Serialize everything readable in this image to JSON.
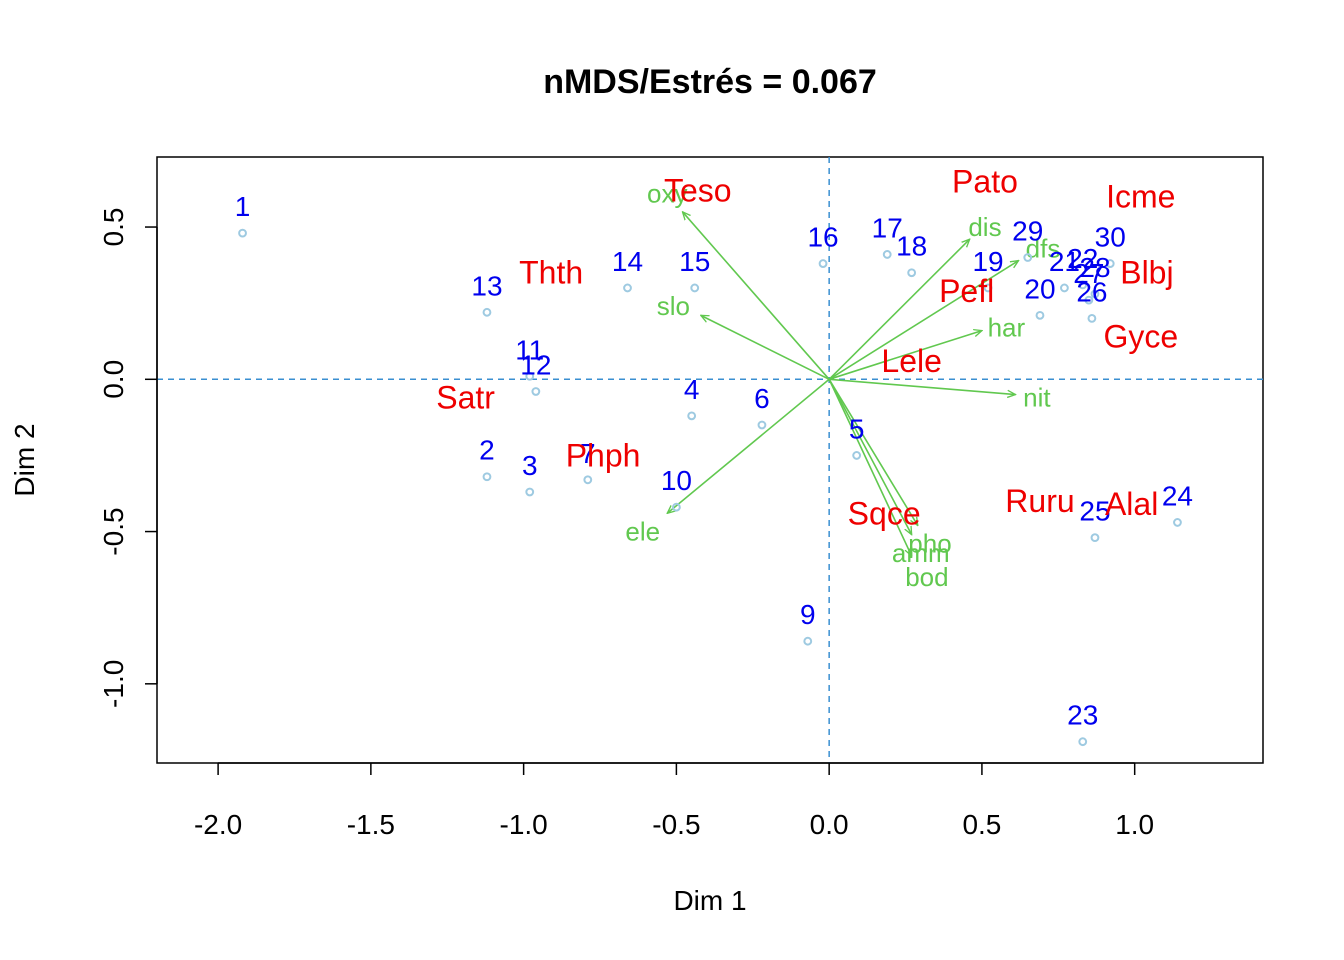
{
  "chart_data": {
    "type": "scatter",
    "title": "nMDS/Estrés = 0.067",
    "xlabel": "Dim 1",
    "ylabel": "Dim 2",
    "xlim": [
      -2.2,
      1.42
    ],
    "ylim": [
      -1.26,
      0.73
    ],
    "xticks": [
      -2.0,
      -1.5,
      -1.0,
      -0.5,
      0.0,
      0.5,
      1.0
    ],
    "xtick_labels": [
      "-2.0",
      "-1.5",
      "-1.0",
      "-0.5",
      "0.0",
      "0.5",
      "1.0"
    ],
    "yticks": [
      -1.0,
      -0.5,
      0.0,
      0.5
    ],
    "ytick_labels": [
      "-1.0",
      "-0.5",
      "0.0",
      "0.5"
    ],
    "reference_lines": {
      "x": 0,
      "y": 0,
      "style": "dashed"
    },
    "colors": {
      "points": "#9ecae1",
      "site_labels": "#0000ee",
      "species_labels": "#ee0000",
      "vectors": "#61c84f",
      "reference_lines": "#3a8fd1"
    },
    "sites": [
      {
        "label": "1",
        "x": -1.92,
        "y": 0.48
      },
      {
        "label": "2",
        "x": -1.12,
        "y": -0.32
      },
      {
        "label": "3",
        "x": -0.98,
        "y": -0.37
      },
      {
        "label": "4",
        "x": -0.45,
        "y": -0.12
      },
      {
        "label": "5",
        "x": 0.09,
        "y": -0.25
      },
      {
        "label": "6",
        "x": -0.22,
        "y": -0.15
      },
      {
        "label": "7",
        "x": -0.79,
        "y": -0.33
      },
      {
        "label": "9",
        "x": -0.07,
        "y": -0.86
      },
      {
        "label": "10",
        "x": -0.5,
        "y": -0.42
      },
      {
        "label": "11",
        "x": -0.98,
        "y": 0.01
      },
      {
        "label": "12",
        "x": -0.96,
        "y": -0.04
      },
      {
        "label": "13",
        "x": -1.12,
        "y": 0.22
      },
      {
        "label": "14",
        "x": -0.66,
        "y": 0.3
      },
      {
        "label": "15",
        "x": -0.44,
        "y": 0.3
      },
      {
        "label": "16",
        "x": -0.02,
        "y": 0.38
      },
      {
        "label": "17",
        "x": 0.19,
        "y": 0.41
      },
      {
        "label": "18",
        "x": 0.27,
        "y": 0.35
      },
      {
        "label": "19",
        "x": 0.52,
        "y": 0.3
      },
      {
        "label": "20",
        "x": 0.69,
        "y": 0.21
      },
      {
        "label": "21",
        "x": 0.77,
        "y": 0.3
      },
      {
        "label": "22",
        "x": 0.83,
        "y": 0.31
      },
      {
        "label": "23",
        "x": 0.83,
        "y": -1.19
      },
      {
        "label": "24",
        "x": 1.14,
        "y": -0.47
      },
      {
        "label": "25",
        "x": 0.87,
        "y": -0.52
      },
      {
        "label": "26",
        "x": 0.86,
        "y": 0.2
      },
      {
        "label": "27",
        "x": 0.85,
        "y": 0.26
      },
      {
        "label": "28",
        "x": 0.87,
        "y": 0.28
      },
      {
        "label": "29",
        "x": 0.65,
        "y": 0.4
      },
      {
        "label": "30",
        "x": 0.92,
        "y": 0.38
      }
    ],
    "species": [
      {
        "label": "Teso",
        "x": -0.43,
        "y": 0.62
      },
      {
        "label": "Pato",
        "x": 0.51,
        "y": 0.65
      },
      {
        "label": "Icme",
        "x": 1.02,
        "y": 0.6
      },
      {
        "label": "Thth",
        "x": -0.91,
        "y": 0.35
      },
      {
        "label": "Pefl",
        "x": 0.45,
        "y": 0.29
      },
      {
        "label": "Blbj",
        "x": 1.04,
        "y": 0.35
      },
      {
        "label": "Gyce",
        "x": 1.02,
        "y": 0.14
      },
      {
        "label": "Lele",
        "x": 0.27,
        "y": 0.06
      },
      {
        "label": "Satr",
        "x": -1.19,
        "y": -0.06
      },
      {
        "label": "Phph",
        "x": -0.74,
        "y": -0.25
      },
      {
        "label": "Ruru",
        "x": 0.69,
        "y": -0.4
      },
      {
        "label": "Alal",
        "x": 0.99,
        "y": -0.41
      },
      {
        "label": "Sqce",
        "x": 0.18,
        "y": -0.44
      }
    ],
    "vectors": [
      {
        "label": "oxy",
        "x": -0.48,
        "y": 0.55,
        "lx": -0.53,
        "ly": 0.61
      },
      {
        "label": "slo",
        "x": -0.42,
        "y": 0.21,
        "lx": -0.51,
        "ly": 0.24
      },
      {
        "label": "dis",
        "x": 0.46,
        "y": 0.46,
        "lx": 0.51,
        "ly": 0.5
      },
      {
        "label": "dfs",
        "x": 0.62,
        "y": 0.39,
        "lx": 0.7,
        "ly": 0.43
      },
      {
        "label": "har",
        "x": 0.5,
        "y": 0.16,
        "lx": 0.58,
        "ly": 0.17
      },
      {
        "label": "nit",
        "x": 0.61,
        "y": -0.05,
        "lx": 0.68,
        "ly": -0.06
      },
      {
        "label": "ele",
        "x": -0.53,
        "y": -0.44,
        "lx": -0.61,
        "ly": -0.5
      },
      {
        "label": "pho",
        "x": 0.29,
        "y": -0.48,
        "lx": 0.33,
        "ly": -0.54
      },
      {
        "label": "amm",
        "x": 0.27,
        "y": -0.51,
        "lx": 0.3,
        "ly": -0.57
      },
      {
        "label": "bod",
        "x": 0.27,
        "y": -0.58,
        "lx": 0.32,
        "ly": -0.65
      }
    ]
  }
}
